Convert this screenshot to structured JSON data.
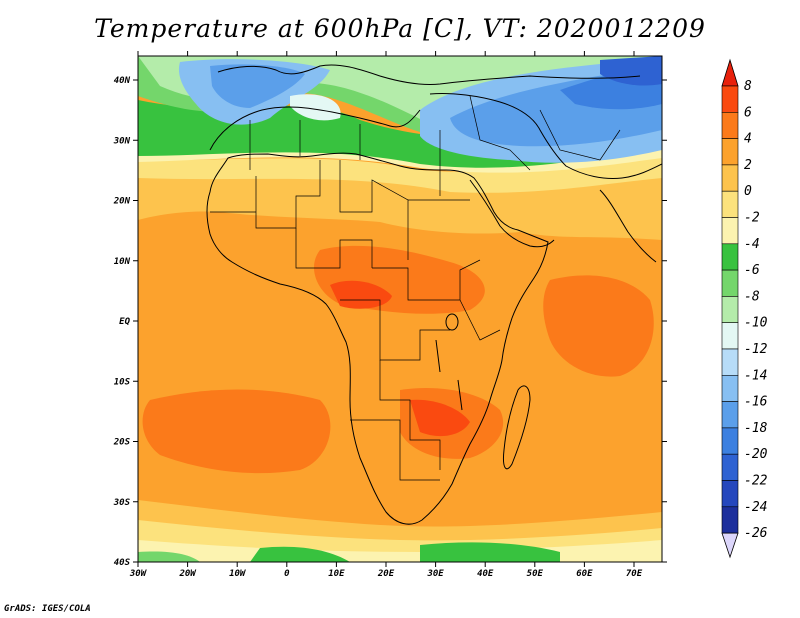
{
  "title": "Temperature at 600hPa [C], VT: 2020012209",
  "credit": "GrADS: IGES/COLA",
  "map": {
    "lat_labels": [
      "40N",
      "30N",
      "20N",
      "10N",
      "EQ",
      "10S",
      "20S",
      "30S",
      "40S"
    ],
    "lon_labels": [
      "30W",
      "20W",
      "10W",
      "0",
      "10E",
      "20E",
      "30E",
      "40E",
      "50E",
      "60E",
      "70E"
    ]
  },
  "colorbar": {
    "levels": [
      "8",
      "6",
      "4",
      "2",
      "0",
      "-2",
      "-4",
      "-6",
      "-8",
      "-10",
      "-12",
      "-14",
      "-16",
      "-18",
      "-20",
      "-22",
      "-24",
      "-26"
    ],
    "colors": {
      "above_8": "#e8210c",
      "6_8": "#fa4a10",
      "4_6": "#fb7a1a",
      "2_4": "#fca22d",
      "0_2": "#fdc34d",
      "m2_0": "#fce27d",
      "m4_m2": "#fcf3b0",
      "m6_m4": "#38c23f",
      "m8_m6": "#74d66b",
      "m10_m8": "#b4ecaa",
      "m12_m10": "#e4f8f4",
      "m14_m12": "#b7dcf8",
      "m16_m14": "#87bff2",
      "m18_m16": "#5b9fea",
      "m20_m18": "#3c80e0",
      "m22_m20": "#2e62d2",
      "m24_m22": "#2547bd",
      "m26_m24": "#1d2f9c",
      "below_m26": "#0f1a6f",
      "under_triangle": "#dcd6fb"
    }
  }
}
